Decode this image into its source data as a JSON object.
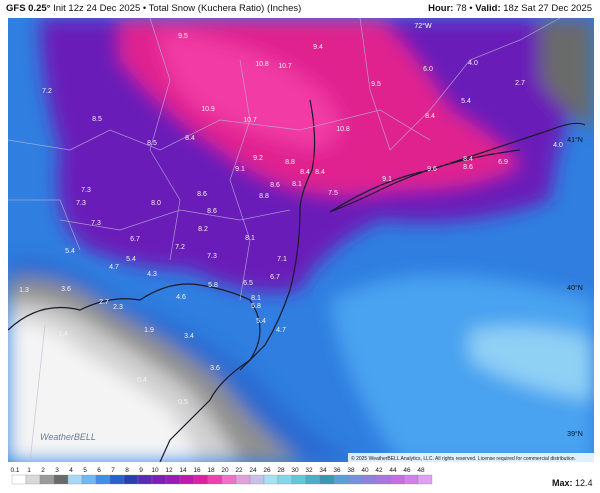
{
  "header": {
    "model": "GFS 0.25°",
    "description": "Init 12z 24 Dec 2025 • Total Snow (Kuchera Ratio) (Inches)",
    "hour_label": "Hour:",
    "hour": "78",
    "valid_label": "Valid:",
    "valid": "18z Sat 27 Dec 2025"
  },
  "map": {
    "values": [
      "9.5",
      "9.4",
      "10.8",
      "10.7",
      "7.2",
      "8.5",
      "10.9",
      "10.7",
      "9.5",
      "6.0",
      "4.0",
      "2.7",
      "5.4",
      "8.4",
      "10.8",
      "4.0",
      "8.4",
      "8.5",
      "9.2",
      "8.8",
      "9.1",
      "8.4",
      "8.4",
      "8.6",
      "8.1",
      "9.1",
      "9.6",
      "8.4",
      "8.6",
      "6.9",
      "7.3",
      "7.3",
      "8.6",
      "8.8",
      "7.5",
      "8.0",
      "8.6",
      "7.3",
      "8.2",
      "6.7",
      "8.1",
      "7.2",
      "5.4",
      "5.4",
      "4.7",
      "7.3",
      "7.1",
      "4.3",
      "6.7",
      "6.5",
      "5.8",
      "3.6",
      "4.6",
      "8.1",
      "5.8",
      "2.7",
      "2.3",
      "1.3",
      "1.4",
      "1.9",
      "3.4",
      "5.4",
      "4.7",
      "3.6",
      "0.4",
      "0.5",
      "0.2"
    ],
    "graticule": [
      "72°W",
      "41°N",
      "40°N",
      "39°N"
    ],
    "watermark": "WeatherBELL",
    "copyright": "© 2025 WeatherBELL Analytics, LLC. All rights reserved. License required for commercial distribution."
  },
  "colorbar": {
    "labels": [
      "0.1",
      "1",
      "2",
      "3",
      "4",
      "5",
      "6",
      "7",
      "8",
      "9",
      "10",
      "12",
      "14",
      "16",
      "18",
      "20",
      "22",
      "24",
      "26",
      "28",
      "30",
      "32",
      "34",
      "36",
      "38",
      "40",
      "42",
      "44",
      "46",
      "48"
    ],
    "max_label": "Max:",
    "max_value": "12.4"
  }
}
